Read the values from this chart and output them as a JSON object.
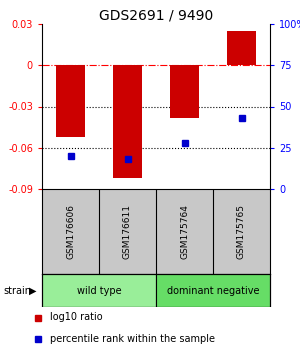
{
  "title": "GDS2691 / 9490",
  "samples": [
    "GSM176606",
    "GSM176611",
    "GSM175764",
    "GSM175765"
  ],
  "log10_ratio": [
    -0.052,
    -0.082,
    -0.038,
    0.025
  ],
  "percentile_rank": [
    20,
    18,
    28,
    43
  ],
  "groups": [
    {
      "label": "wild type",
      "samples": [
        0,
        1
      ],
      "color": "#99EE99"
    },
    {
      "label": "dominant negative",
      "samples": [
        2,
        3
      ],
      "color": "#66DD66"
    }
  ],
  "ylim_left": [
    -0.09,
    0.03
  ],
  "ylim_right": [
    0,
    100
  ],
  "yticks_left": [
    -0.09,
    -0.06,
    -0.03,
    0,
    0.03
  ],
  "yticks_right": [
    0,
    25,
    50,
    75,
    100
  ],
  "ytick_labels_left": [
    "-0.09",
    "-0.06",
    "-0.03",
    "0",
    "0.03"
  ],
  "ytick_labels_right": [
    "0",
    "25",
    "50",
    "75",
    "100%"
  ],
  "bar_color": "#CC0000",
  "dot_color": "#0000CC",
  "bg_color": "#FFFFFF",
  "sample_label_bg": "#C8C8C8",
  "dotted_lines": [
    -0.03,
    -0.06
  ],
  "legend_items": [
    {
      "color": "#CC0000",
      "label": "log10 ratio"
    },
    {
      "color": "#0000CC",
      "label": "percentile rank within the sample"
    }
  ]
}
